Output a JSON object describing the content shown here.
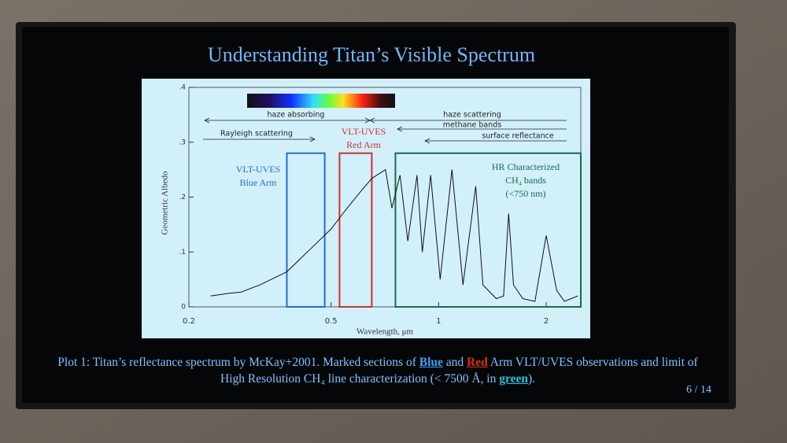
{
  "slide": {
    "title": "Understanding Titan’s Visible Spectrum",
    "caption": [
      {
        "text": "Plot 1: Titan’s reflectance spectrum by McKay+2001. Marked sections of "
      },
      {
        "text": "Blue",
        "color": "#3aa4ff"
      },
      {
        "text": " and "
      },
      {
        "text": "Red",
        "color": "#e0281a"
      },
      {
        "text": " Arm VLT/UVES observations and limit of High Resolution CH₄ line characterization (< 7500 Å, in "
      },
      {
        "text": "green",
        "color": "#22c4e0"
      },
      {
        "text": ")."
      }
    ],
    "page": "6 / 14"
  },
  "chart_data": {
    "type": "line",
    "x_label": "Wavelength, μm",
    "y_label": "Geometric Albedo",
    "x_log": true,
    "xlim": [
      0.2,
      2.5
    ],
    "xticks": [
      0.2,
      0.5,
      1,
      2
    ],
    "ylim": [
      0,
      0.4
    ],
    "yticks": [
      0,
      {
        "value": 0.1,
        "label": ".1"
      },
      {
        "value": 0.2,
        "label": ".2"
      },
      {
        "value": 0.3,
        "label": ".3"
      },
      {
        "value": 0.4,
        "label": ".4"
      }
    ],
    "x": [
      0.23,
      0.26,
      0.28,
      0.316,
      0.376,
      0.45,
      0.5,
      0.55,
      0.61,
      0.65,
      0.71,
      0.74,
      0.78,
      0.82,
      0.87,
      0.9,
      0.95,
      1.01,
      1.09,
      1.17,
      1.27,
      1.33,
      1.45,
      1.52,
      1.57,
      1.62,
      1.72,
      1.86,
      2.0,
      2.14,
      2.25,
      2.45
    ],
    "series": [
      {
        "color": "#111111",
        "values": [
          0.02,
          0.025,
          0.027,
          0.04,
          0.064,
          0.113,
          0.142,
          0.177,
          0.213,
          0.234,
          0.25,
          0.18,
          0.24,
          0.12,
          0.24,
          0.1,
          0.24,
          0.05,
          0.25,
          0.04,
          0.22,
          0.04,
          0.015,
          0.02,
          0.17,
          0.04,
          0.015,
          0.01,
          0.13,
          0.03,
          0.01,
          0.02
        ]
      }
    ],
    "regions": [
      {
        "label": [
          "VLT-UVES",
          "Blue Arm"
        ],
        "x": [
          0.376,
          0.48
        ],
        "top": 0.28,
        "color": "#1f6fd0"
      },
      {
        "label": [
          "VLT-UVES",
          "Red Arm"
        ],
        "x": [
          0.528,
          0.65
        ],
        "top": 0.28,
        "color": "#d0302a"
      },
      {
        "label": [
          "HR Characterized",
          "CH₄ bands",
          "(<750 nm)"
        ],
        "x": [
          0.757,
          2.5
        ],
        "top": 0.28,
        "color": "#1a6a4a"
      }
    ],
    "annotations": [
      "haze absorbing",
      "haze scattering",
      "methane bands",
      "surface reflectance",
      "Rayleigh scattering"
    ]
  }
}
